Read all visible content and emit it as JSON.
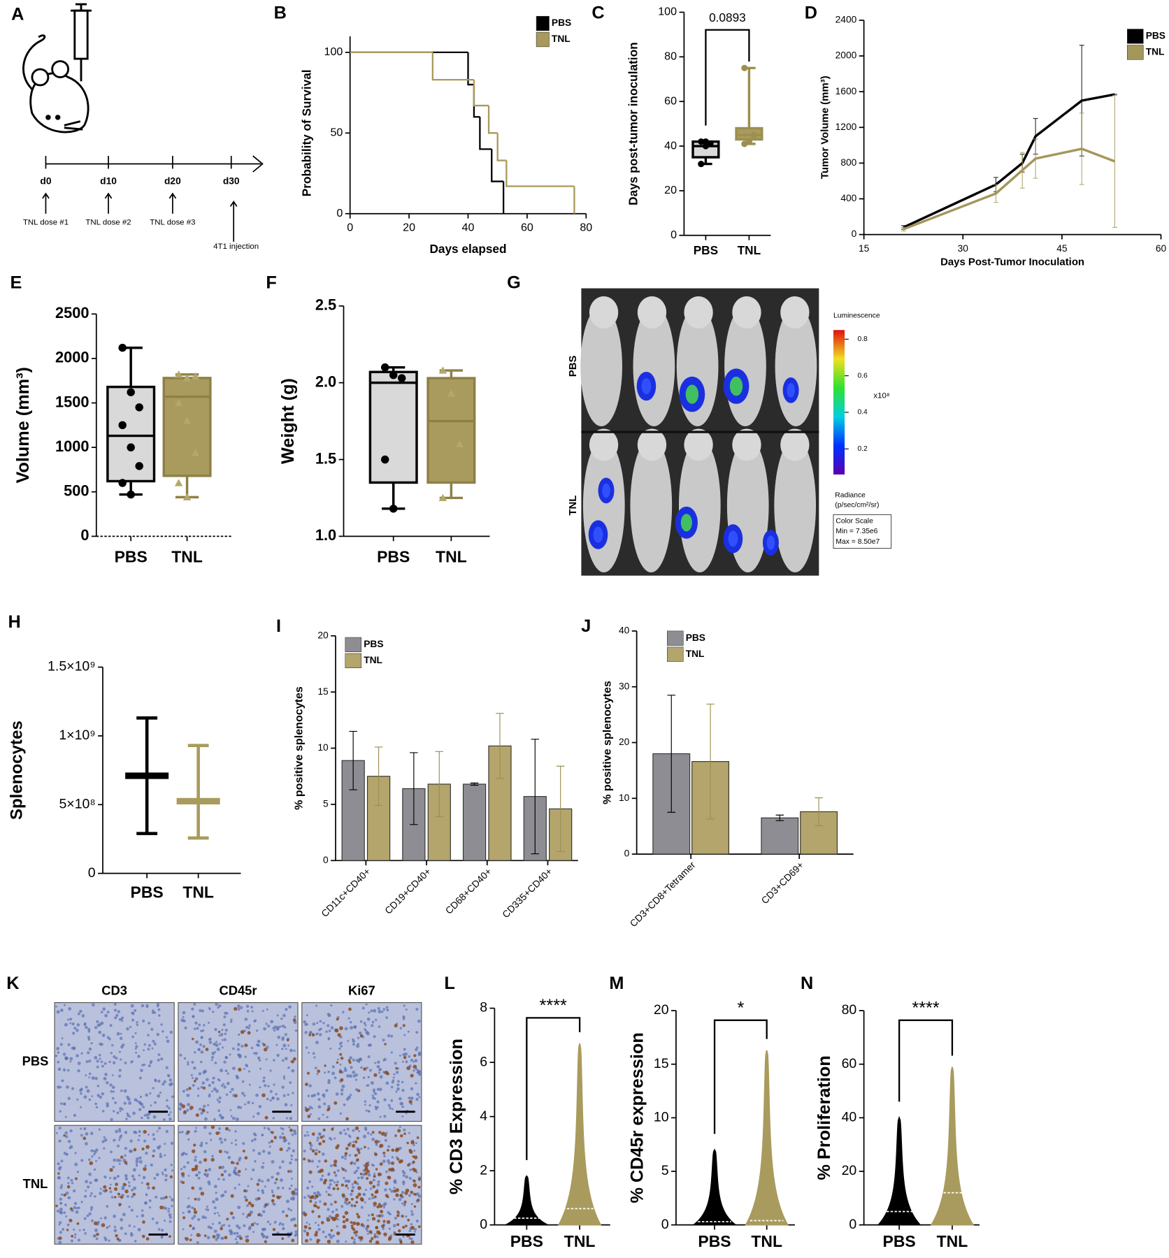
{
  "chart_data": [
    {
      "type": "timeline",
      "panel_label": "A",
      "timepoints": [
        "d0",
        "d10",
        "d20",
        "d30"
      ],
      "events": [
        "TNL dose #1",
        "TNL dose #2",
        "TNL dose #3",
        "4T1 injection"
      ]
    },
    {
      "type": "step",
      "panel_label": "B",
      "xlabel": "Days elapsed",
      "ylabel": "Probability of Survival",
      "xlim": [
        0,
        80
      ],
      "xticks": [
        0,
        20,
        40,
        60,
        80
      ],
      "ylim": [
        0,
        100
      ],
      "yticks": [
        0,
        50,
        100
      ],
      "legend": "upper right",
      "series": [
        {
          "name": "PBS",
          "color": "#000000",
          "x": [
            0,
            40,
            42,
            44,
            48,
            52
          ],
          "values": [
            100,
            80,
            60,
            40,
            20,
            0
          ]
        },
        {
          "name": "TNL",
          "color": "#a89a5c",
          "x": [
            0,
            28,
            42,
            47,
            50,
            53,
            76
          ],
          "values": [
            100,
            83,
            67,
            50,
            33,
            17,
            0
          ]
        }
      ]
    },
    {
      "type": "box",
      "panel_label": "C",
      "ylabel": "Days post-tumor inoculation",
      "ylim": [
        0,
        100
      ],
      "yticks": [
        0,
        20,
        40,
        60,
        80,
        100
      ],
      "categories": [
        "PBS",
        "TNL"
      ],
      "annotation": "0.0893",
      "boxes": [
        {
          "color": "#000000",
          "fill": "#d9d9d9",
          "marker": "circle",
          "min": 32,
          "q1": 35,
          "median": 40,
          "q3": 42,
          "max": 42,
          "points": [
            32,
            40,
            41,
            42,
            42
          ]
        },
        {
          "color": "#9c8f4f",
          "fill": "#a99b5d",
          "marker": "circle",
          "min": 41,
          "q1": 43,
          "median": 45,
          "q3": 48,
          "max": 75,
          "points": [
            41,
            42,
            45,
            75
          ]
        }
      ]
    },
    {
      "type": "line",
      "panel_label": "D",
      "xlabel": "Days Post-Tumor Inoculation",
      "ylabel": "Tumor Volume (mm³)",
      "xlim": [
        15,
        60
      ],
      "xticks": [
        15,
        30,
        45,
        60
      ],
      "ylim": [
        0,
        2400
      ],
      "yticks": [
        0,
        400,
        800,
        1200,
        1600,
        2000,
        2400
      ],
      "legend": "upper right",
      "x": [
        21,
        35,
        39,
        41,
        48,
        53
      ],
      "series": [
        {
          "name": "PBS",
          "color": "#000000",
          "values": [
            80,
            560,
            800,
            1100,
            1500,
            1570
          ],
          "errors": [
            20,
            80,
            100,
            200,
            620,
            0
          ]
        },
        {
          "name": "TNL",
          "color": "#a3975a",
          "values": [
            60,
            460,
            720,
            850,
            960,
            820
          ],
          "errors": [
            20,
            100,
            200,
            220,
            400,
            740
          ]
        }
      ]
    },
    {
      "type": "box",
      "panel_label": "E",
      "ylabel": "Volume (mm³)",
      "ylim": [
        0,
        2500
      ],
      "yticks": [
        0,
        500,
        1000,
        1500,
        2000,
        2500
      ],
      "categories": [
        "PBS",
        "TNL"
      ],
      "boxes": [
        {
          "color": "#000000",
          "fill": "#d9d9d9",
          "marker": "circle",
          "min": 470,
          "q1": 620,
          "median": 1130,
          "q3": 1680,
          "max": 2120,
          "points": [
            2120,
            1620,
            1450,
            1250,
            1000,
            790,
            600,
            470
          ]
        },
        {
          "color": "#8e8045",
          "fill": "#a99b5d",
          "marker": "triangle",
          "min": 440,
          "q1": 680,
          "median": 1570,
          "q3": 1780,
          "max": 1820,
          "points": [
            1820,
            1780,
            1800,
            1500,
            1300,
            940,
            600,
            440
          ]
        }
      ]
    },
    {
      "type": "box",
      "panel_label": "F",
      "ylabel": "Weight (g)",
      "ylim": [
        1,
        2.5
      ],
      "yticks": [
        {
          "value": 1,
          "label": "1.0"
        },
        1.5,
        {
          "value": 2,
          "label": "2.0"
        },
        2.5
      ],
      "categories": [
        "PBS",
        "TNL"
      ],
      "boxes": [
        {
          "color": "#000000",
          "fill": "#d9d9d9",
          "marker": "circle",
          "min": 1.18,
          "q1": 1.35,
          "median": 2.0,
          "q3": 2.07,
          "max": 2.1,
          "points": [
            2.1,
            2.05,
            2.03,
            1.5,
            1.18
          ]
        },
        {
          "color": "#8e8045",
          "fill": "#a99b5d",
          "marker": "triangle",
          "min": 1.25,
          "q1": 1.35,
          "median": 1.75,
          "q3": 2.03,
          "max": 2.08,
          "points": [
            2.08,
            1.93,
            1.6,
            1.25
          ]
        }
      ]
    },
    {
      "type": "image",
      "panel_label": "G",
      "row_labels": [
        "PBS",
        "TNL"
      ],
      "colorbar_title": "Luminescence",
      "colorbar_lim": [
        0.06,
        0.85
      ],
      "colorbar_ticks": [
        0.2,
        0.4,
        0.6,
        0.8
      ],
      "colorbar_unit": "x10⁸",
      "radiance_label": [
        "Radiance",
        "(p/sec/cm²/sr)"
      ],
      "scale_box": [
        "Color Scale",
        "Min = 7.35e6",
        "Max = 8.50e7"
      ]
    },
    {
      "type": "meanrange",
      "panel_label": "H",
      "ylabel": "Splenocytes",
      "ylim": [
        0,
        1500000000
      ],
      "yticks": [
        0,
        {
          "value": 500000000,
          "label": "5×10⁸"
        },
        {
          "value": 1000000000,
          "label": "1×10⁹"
        },
        {
          "value": 1500000000,
          "label": "1.5×10⁹"
        }
      ],
      "categories": [
        "PBS",
        "TNL"
      ],
      "boxes": [
        {
          "color": "#000000",
          "min": 290000000,
          "mean": 710000000,
          "max": 1130000000
        },
        {
          "color": "#a99b5d",
          "min": 257000000,
          "mean": 525000000,
          "max": 930000000
        }
      ]
    },
    {
      "type": "bar",
      "panel_label": "I",
      "ylabel": "% positive splenocytes",
      "ylim": [
        0,
        20
      ],
      "yticks": [
        0,
        5,
        10,
        15,
        20
      ],
      "legend": "upper left",
      "categories": [
        "CD11c+CD40+",
        "CD19+CD40+",
        "CD68+CD40+",
        "CD335+CD40+"
      ],
      "series": [
        {
          "name": "PBS",
          "color": "#8e8d94",
          "values": [
            8.9,
            6.4,
            6.8,
            5.7
          ],
          "errors": [
            2.6,
            3.2,
            0.1,
            5.1
          ]
        },
        {
          "name": "TNL",
          "color": "#b3a56b",
          "values": [
            7.5,
            6.8,
            10.2,
            4.6
          ],
          "errors": [
            2.6,
            2.9,
            2.9,
            3.8
          ]
        }
      ]
    },
    {
      "type": "bar",
      "panel_label": "J",
      "ylabel": "% positive splenocytes",
      "ylim": [
        0,
        40
      ],
      "yticks": [
        0,
        10,
        20,
        30,
        40
      ],
      "legend": "upper left",
      "categories": [
        "CD3+CD8+Tetramer",
        "CD3+CD69+"
      ],
      "series": [
        {
          "name": "PBS",
          "color": "#8e8d94",
          "values": [
            18,
            6.5
          ],
          "errors": [
            10.5,
            0.5
          ]
        },
        {
          "name": "TNL",
          "color": "#b3a56b",
          "values": [
            16.6,
            7.6
          ],
          "errors": [
            10.3,
            2.5
          ]
        }
      ]
    },
    {
      "type": "image_grid",
      "panel_label": "K",
      "column_labels": [
        "CD3",
        "CD45r",
        "Ki67"
      ],
      "row_labels": [
        "PBS",
        "TNL"
      ]
    },
    {
      "type": "violin",
      "panel_label": "L",
      "ylabel": "% CD3 Expression",
      "ylim": [
        0,
        8
      ],
      "yticks": [
        0,
        2,
        4,
        6,
        8
      ],
      "categories": [
        "PBS",
        "TNL"
      ],
      "annotation": "****",
      "violins": [
        {
          "color": "#000000",
          "median": 0.25,
          "max": 1.8
        },
        {
          "color": "#a99b5d",
          "median": 0.6,
          "max": 6.7
        }
      ]
    },
    {
      "type": "violin",
      "panel_label": "M",
      "ylabel": "% CD45r expression",
      "ylim": [
        0,
        20
      ],
      "yticks": [
        0,
        5,
        10,
        15,
        20
      ],
      "categories": [
        "PBS",
        "TNL"
      ],
      "annotation": "*",
      "violins": [
        {
          "color": "#000000",
          "median": 0.3,
          "max": 7
        },
        {
          "color": "#a99b5d",
          "median": 0.4,
          "max": 16.3
        }
      ]
    },
    {
      "type": "violin",
      "panel_label": "N",
      "ylabel": "% Proliferation",
      "ylim": [
        0,
        80
      ],
      "yticks": [
        0,
        20,
        40,
        60,
        80
      ],
      "categories": [
        "PBS",
        "TNL"
      ],
      "annotation": "****",
      "violins": [
        {
          "color": "#000000",
          "median": 5,
          "max": 40
        },
        {
          "color": "#a99b5d",
          "median": 12,
          "max": 59
        }
      ]
    }
  ]
}
